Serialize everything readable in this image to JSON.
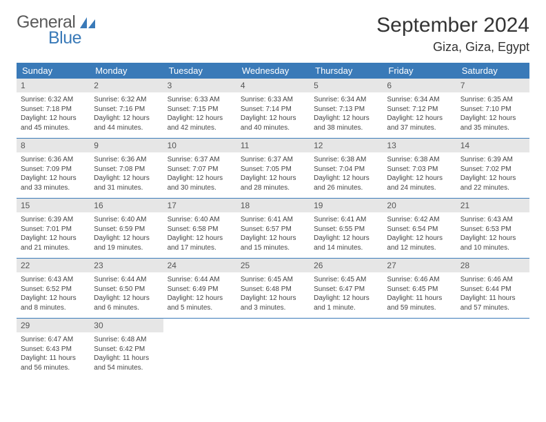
{
  "colors": {
    "header_bg": "#3a7ab8",
    "header_text": "#ffffff",
    "daynum_bg": "#e6e6e6",
    "daynum_text": "#555555",
    "detail_text": "#444444",
    "row_border": "#3a7ab8",
    "logo_gray": "#5a5a5a",
    "logo_blue": "#3a7ab8",
    "title_text": "#333333",
    "background": "#ffffff"
  },
  "typography": {
    "month_title_fontsize": 30,
    "location_fontsize": 18,
    "weekday_fontsize": 13,
    "daynum_fontsize": 12,
    "detail_fontsize": 10
  },
  "logo": {
    "text1": "General",
    "text2": "Blue"
  },
  "title": "September 2024",
  "location": "Giza, Giza, Egypt",
  "weekdays": [
    "Sunday",
    "Monday",
    "Tuesday",
    "Wednesday",
    "Thursday",
    "Friday",
    "Saturday"
  ],
  "weeks": [
    [
      {
        "n": "1",
        "sunrise": "Sunrise: 6:32 AM",
        "sunset": "Sunset: 7:18 PM",
        "daylight": "Daylight: 12 hours and 45 minutes."
      },
      {
        "n": "2",
        "sunrise": "Sunrise: 6:32 AM",
        "sunset": "Sunset: 7:16 PM",
        "daylight": "Daylight: 12 hours and 44 minutes."
      },
      {
        "n": "3",
        "sunrise": "Sunrise: 6:33 AM",
        "sunset": "Sunset: 7:15 PM",
        "daylight": "Daylight: 12 hours and 42 minutes."
      },
      {
        "n": "4",
        "sunrise": "Sunrise: 6:33 AM",
        "sunset": "Sunset: 7:14 PM",
        "daylight": "Daylight: 12 hours and 40 minutes."
      },
      {
        "n": "5",
        "sunrise": "Sunrise: 6:34 AM",
        "sunset": "Sunset: 7:13 PM",
        "daylight": "Daylight: 12 hours and 38 minutes."
      },
      {
        "n": "6",
        "sunrise": "Sunrise: 6:34 AM",
        "sunset": "Sunset: 7:12 PM",
        "daylight": "Daylight: 12 hours and 37 minutes."
      },
      {
        "n": "7",
        "sunrise": "Sunrise: 6:35 AM",
        "sunset": "Sunset: 7:10 PM",
        "daylight": "Daylight: 12 hours and 35 minutes."
      }
    ],
    [
      {
        "n": "8",
        "sunrise": "Sunrise: 6:36 AM",
        "sunset": "Sunset: 7:09 PM",
        "daylight": "Daylight: 12 hours and 33 minutes."
      },
      {
        "n": "9",
        "sunrise": "Sunrise: 6:36 AM",
        "sunset": "Sunset: 7:08 PM",
        "daylight": "Daylight: 12 hours and 31 minutes."
      },
      {
        "n": "10",
        "sunrise": "Sunrise: 6:37 AM",
        "sunset": "Sunset: 7:07 PM",
        "daylight": "Daylight: 12 hours and 30 minutes."
      },
      {
        "n": "11",
        "sunrise": "Sunrise: 6:37 AM",
        "sunset": "Sunset: 7:05 PM",
        "daylight": "Daylight: 12 hours and 28 minutes."
      },
      {
        "n": "12",
        "sunrise": "Sunrise: 6:38 AM",
        "sunset": "Sunset: 7:04 PM",
        "daylight": "Daylight: 12 hours and 26 minutes."
      },
      {
        "n": "13",
        "sunrise": "Sunrise: 6:38 AM",
        "sunset": "Sunset: 7:03 PM",
        "daylight": "Daylight: 12 hours and 24 minutes."
      },
      {
        "n": "14",
        "sunrise": "Sunrise: 6:39 AM",
        "sunset": "Sunset: 7:02 PM",
        "daylight": "Daylight: 12 hours and 22 minutes."
      }
    ],
    [
      {
        "n": "15",
        "sunrise": "Sunrise: 6:39 AM",
        "sunset": "Sunset: 7:01 PM",
        "daylight": "Daylight: 12 hours and 21 minutes."
      },
      {
        "n": "16",
        "sunrise": "Sunrise: 6:40 AM",
        "sunset": "Sunset: 6:59 PM",
        "daylight": "Daylight: 12 hours and 19 minutes."
      },
      {
        "n": "17",
        "sunrise": "Sunrise: 6:40 AM",
        "sunset": "Sunset: 6:58 PM",
        "daylight": "Daylight: 12 hours and 17 minutes."
      },
      {
        "n": "18",
        "sunrise": "Sunrise: 6:41 AM",
        "sunset": "Sunset: 6:57 PM",
        "daylight": "Daylight: 12 hours and 15 minutes."
      },
      {
        "n": "19",
        "sunrise": "Sunrise: 6:41 AM",
        "sunset": "Sunset: 6:55 PM",
        "daylight": "Daylight: 12 hours and 14 minutes."
      },
      {
        "n": "20",
        "sunrise": "Sunrise: 6:42 AM",
        "sunset": "Sunset: 6:54 PM",
        "daylight": "Daylight: 12 hours and 12 minutes."
      },
      {
        "n": "21",
        "sunrise": "Sunrise: 6:43 AM",
        "sunset": "Sunset: 6:53 PM",
        "daylight": "Daylight: 12 hours and 10 minutes."
      }
    ],
    [
      {
        "n": "22",
        "sunrise": "Sunrise: 6:43 AM",
        "sunset": "Sunset: 6:52 PM",
        "daylight": "Daylight: 12 hours and 8 minutes."
      },
      {
        "n": "23",
        "sunrise": "Sunrise: 6:44 AM",
        "sunset": "Sunset: 6:50 PM",
        "daylight": "Daylight: 12 hours and 6 minutes."
      },
      {
        "n": "24",
        "sunrise": "Sunrise: 6:44 AM",
        "sunset": "Sunset: 6:49 PM",
        "daylight": "Daylight: 12 hours and 5 minutes."
      },
      {
        "n": "25",
        "sunrise": "Sunrise: 6:45 AM",
        "sunset": "Sunset: 6:48 PM",
        "daylight": "Daylight: 12 hours and 3 minutes."
      },
      {
        "n": "26",
        "sunrise": "Sunrise: 6:45 AM",
        "sunset": "Sunset: 6:47 PM",
        "daylight": "Daylight: 12 hours and 1 minute."
      },
      {
        "n": "27",
        "sunrise": "Sunrise: 6:46 AM",
        "sunset": "Sunset: 6:45 PM",
        "daylight": "Daylight: 11 hours and 59 minutes."
      },
      {
        "n": "28",
        "sunrise": "Sunrise: 6:46 AM",
        "sunset": "Sunset: 6:44 PM",
        "daylight": "Daylight: 11 hours and 57 minutes."
      }
    ],
    [
      {
        "n": "29",
        "sunrise": "Sunrise: 6:47 AM",
        "sunset": "Sunset: 6:43 PM",
        "daylight": "Daylight: 11 hours and 56 minutes."
      },
      {
        "n": "30",
        "sunrise": "Sunrise: 6:48 AM",
        "sunset": "Sunset: 6:42 PM",
        "daylight": "Daylight: 11 hours and 54 minutes."
      },
      null,
      null,
      null,
      null,
      null
    ]
  ]
}
